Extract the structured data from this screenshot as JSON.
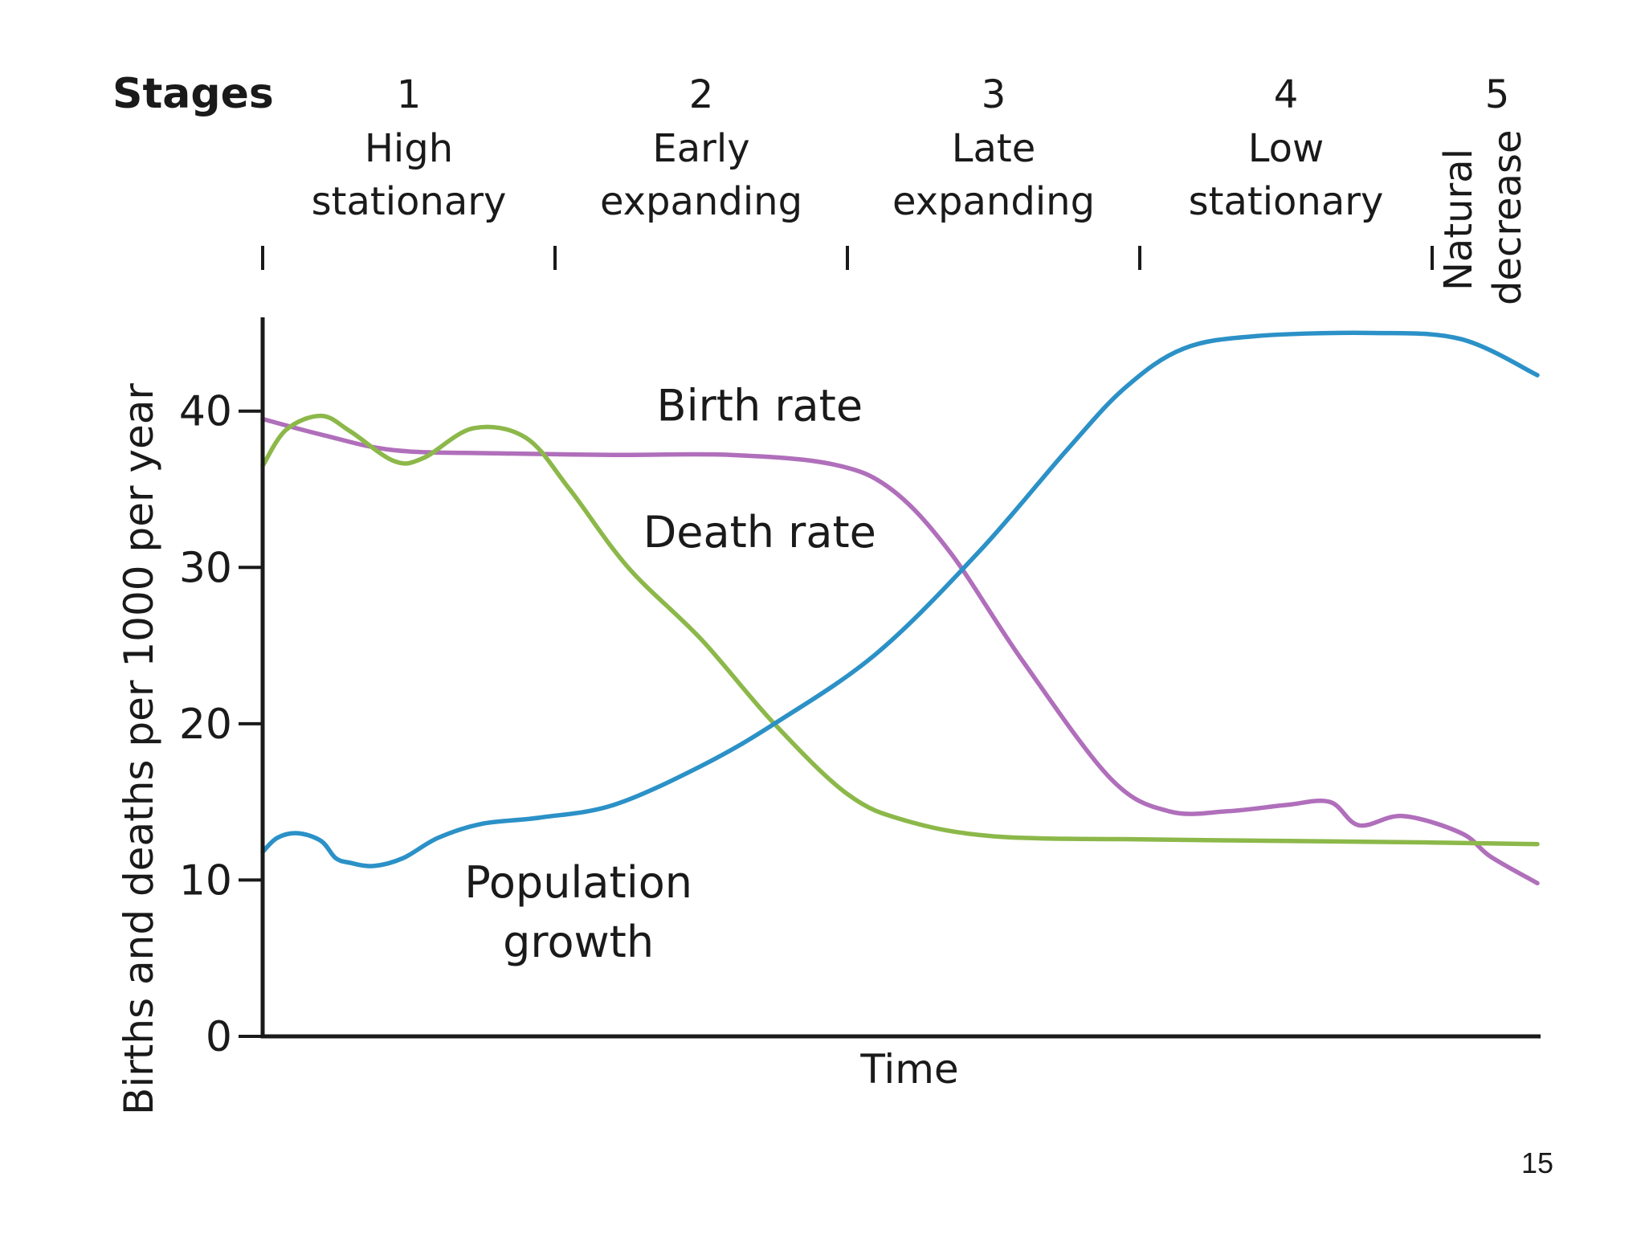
{
  "stages_title": "Stages",
  "page_number": "15",
  "stages": [
    {
      "number": "1",
      "label_lines": [
        "High",
        "stationary"
      ]
    },
    {
      "number": "2",
      "label_lines": [
        "Early",
        "expanding"
      ]
    },
    {
      "number": "3",
      "label_lines": [
        "Late",
        "expanding"
      ]
    },
    {
      "number": "4",
      "label_lines": [
        "Low",
        "stationary"
      ]
    },
    {
      "number": "5",
      "label_lines": [
        "Natural",
        "decrease"
      ]
    }
  ],
  "chart_data": {
    "type": "line",
    "xlabel": "Time",
    "ylabel": "Births and deaths per 1000 per year",
    "ylim": [
      0,
      46
    ],
    "yticks": [
      0,
      10,
      20,
      30,
      40
    ],
    "xlim": [
      0,
      4.36
    ],
    "stage_boundaries": [
      0,
      1,
      2,
      3,
      4
    ],
    "grid": false,
    "legend": "none",
    "series": [
      {
        "name": "Birth rate",
        "color": "#b06fbb",
        "label_at": [
          1.7,
          39.4
        ],
        "x": [
          0,
          0.2,
          0.45,
          0.8,
          1.2,
          1.6,
          1.95,
          2.15,
          2.35,
          2.6,
          2.9,
          3.1,
          3.3,
          3.5,
          3.65,
          3.75,
          3.9,
          4.1,
          4.2,
          4.36
        ],
        "y": [
          39.5,
          38.5,
          37.5,
          37.3,
          37.2,
          37.2,
          36.6,
          35,
          31,
          24,
          16.5,
          14.4,
          14.4,
          14.8,
          15,
          13.5,
          14.1,
          13,
          11.5,
          9.8
        ]
      },
      {
        "name": "Death rate",
        "color": "#8cb84a",
        "label_at": [
          1.7,
          31.3
        ],
        "x": [
          0,
          0.08,
          0.2,
          0.3,
          0.45,
          0.55,
          0.72,
          0.9,
          1.05,
          1.25,
          1.5,
          1.75,
          2,
          2.2,
          2.5,
          3,
          3.5,
          4,
          4.36
        ],
        "y": [
          36.5,
          38.8,
          39.7,
          38.7,
          36.8,
          37,
          38.9,
          38.3,
          35,
          30,
          25.4,
          20,
          15.5,
          13.8,
          12.8,
          12.6,
          12.5,
          12.4,
          12.3
        ],
        "label_lines": [
          "Death rate"
        ]
      },
      {
        "name": "Population growth",
        "color": "#2b91c7",
        "label_at": [
          1.08,
          8.9
        ],
        "label_lines": [
          "Population",
          "growth"
        ],
        "x": [
          0,
          0.05,
          0.12,
          0.2,
          0.25,
          0.3,
          0.38,
          0.48,
          0.6,
          0.75,
          0.95,
          1.2,
          1.5,
          1.75,
          2.1,
          2.45,
          2.75,
          2.95,
          3.15,
          3.4,
          3.8,
          4.1,
          4.36
        ],
        "y": [
          11.8,
          12.7,
          13.0,
          12.5,
          11.4,
          11.1,
          10.9,
          11.4,
          12.7,
          13.6,
          14.0,
          14.8,
          17.3,
          20.0,
          24.5,
          31,
          37.5,
          41.5,
          44.0,
          44.8,
          45.0,
          44.6,
          42.3
        ]
      }
    ]
  }
}
